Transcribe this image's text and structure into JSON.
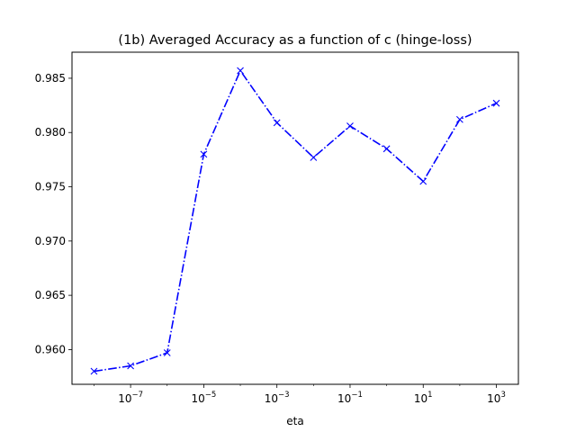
{
  "chart_data": {
    "type": "line",
    "title": "(1b) Averaged Accuracy as a function of c (hinge-loss)",
    "xlabel": "eta",
    "ylabel": "",
    "xscale": "log",
    "xlim": [
      2.5e-09,
      4000.0
    ],
    "ylim": [
      0.9568,
      0.9874
    ],
    "x_ticks": [
      {
        "value": 1e-07,
        "exp": "−7"
      },
      {
        "value": 1e-05,
        "exp": "−5"
      },
      {
        "value": 0.001,
        "exp": "−3"
      },
      {
        "value": 0.1,
        "exp": "−1"
      },
      {
        "value": 10.0,
        "exp": "1"
      },
      {
        "value": 1000.0,
        "exp": "3"
      }
    ],
    "x_tick_base": "10",
    "y_ticks": [
      "0.960",
      "0.965",
      "0.970",
      "0.975",
      "0.980",
      "0.985"
    ],
    "grid": false,
    "series": [
      {
        "color": "#0000ff",
        "line_style": "dash-dot",
        "marker": "x",
        "x": [
          1e-08,
          1e-07,
          1e-06,
          1e-05,
          0.0001,
          0.001,
          0.01,
          0.1,
          1,
          10,
          100,
          1000
        ],
        "y": [
          0.958,
          0.9585,
          0.9597,
          0.978,
          0.9857,
          0.9809,
          0.9777,
          0.9806,
          0.9785,
          0.9755,
          0.9812,
          0.9827
        ]
      }
    ]
  }
}
